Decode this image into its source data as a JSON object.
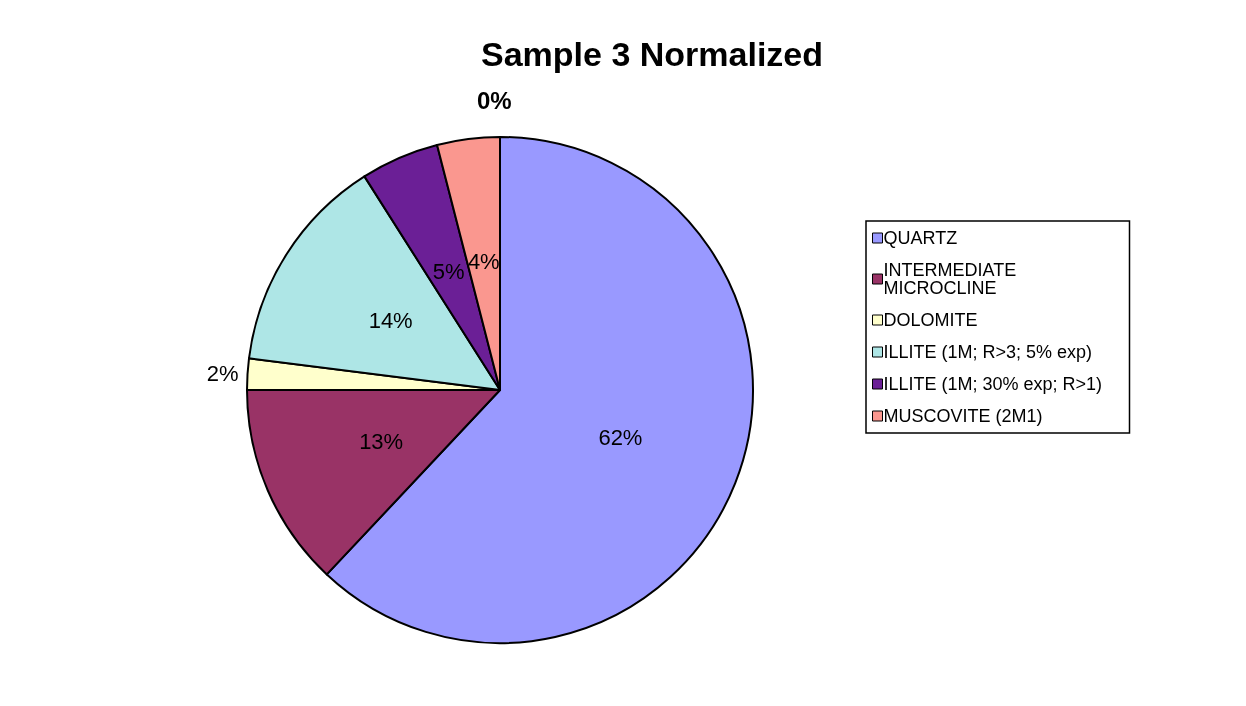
{
  "chart_data": {
    "type": "pie",
    "title": "Sample 3 Normalized",
    "categories": [
      "QUARTZ",
      "INTERMEDIATE MICROCLINE",
      "DOLOMITE",
      "ILLITE (1M; R>3; 5% exp)",
      "ILLITE (1M; 30% exp; R>1)",
      "MUSCOVITE (2M1)"
    ],
    "values": [
      62,
      13,
      2,
      14,
      5,
      4
    ],
    "value_labels": [
      "62%",
      "13%",
      "2%",
      "14%",
      "5%",
      "4%"
    ],
    "colors": [
      "#9999ff",
      "#993366",
      "#ffffcc",
      "#aee6e6",
      "#6b1f96",
      "#fa978f"
    ],
    "annotations": [
      "0%"
    ],
    "legend": "right"
  }
}
